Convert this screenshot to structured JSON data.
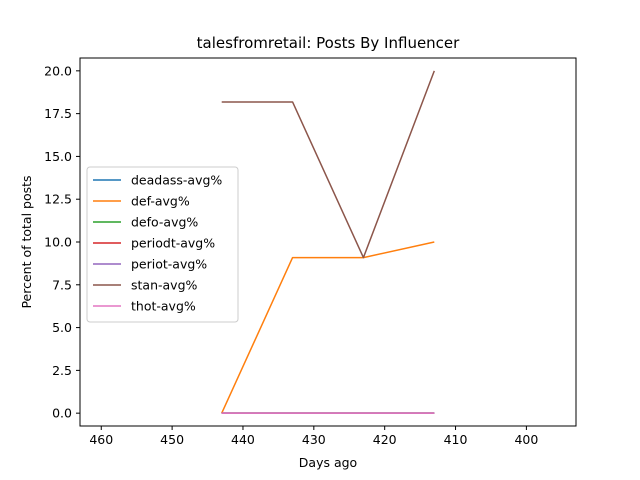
{
  "chart_data": {
    "type": "line",
    "title": "talesfromretail: Posts By Influencer",
    "xlabel": "Days ago",
    "ylabel": "Percent of total posts",
    "xlim": [
      463,
      393
    ],
    "ylim": [
      -0.75,
      20.75
    ],
    "x_inverted": true,
    "xticks": [
      460,
      450,
      440,
      430,
      420,
      410,
      400
    ],
    "yticks": [
      0.0,
      2.5,
      5.0,
      7.5,
      10.0,
      12.5,
      15.0,
      17.5,
      20.0
    ],
    "ytick_labels": [
      "0.0",
      "2.5",
      "5.0",
      "7.5",
      "10.0",
      "12.5",
      "15.0",
      "17.5",
      "20.0"
    ],
    "grid": false,
    "legend_position": "center-left",
    "x": [
      443,
      433,
      423,
      413
    ],
    "series": [
      {
        "name": "deadass-avg%",
        "color": "#1f77b4",
        "values": [
          0,
          0,
          0,
          0
        ]
      },
      {
        "name": "def-avg%",
        "color": "#ff7f0e",
        "values": [
          0,
          9.09,
          9.09,
          10.0
        ]
      },
      {
        "name": "defo-avg%",
        "color": "#2ca02c",
        "values": [
          0,
          0,
          0,
          0
        ]
      },
      {
        "name": "periodt-avg%",
        "color": "#d62728",
        "values": [
          0,
          0,
          0,
          0
        ]
      },
      {
        "name": "periot-avg%",
        "color": "#9467bd",
        "values": [
          0,
          0,
          0,
          0
        ]
      },
      {
        "name": "stan-avg%",
        "color": "#8c564b",
        "values": [
          18.18,
          18.18,
          9.09,
          20.0
        ]
      },
      {
        "name": "thot-avg%",
        "color": "#e377c2",
        "values": [
          0,
          0,
          0,
          0
        ]
      }
    ]
  }
}
